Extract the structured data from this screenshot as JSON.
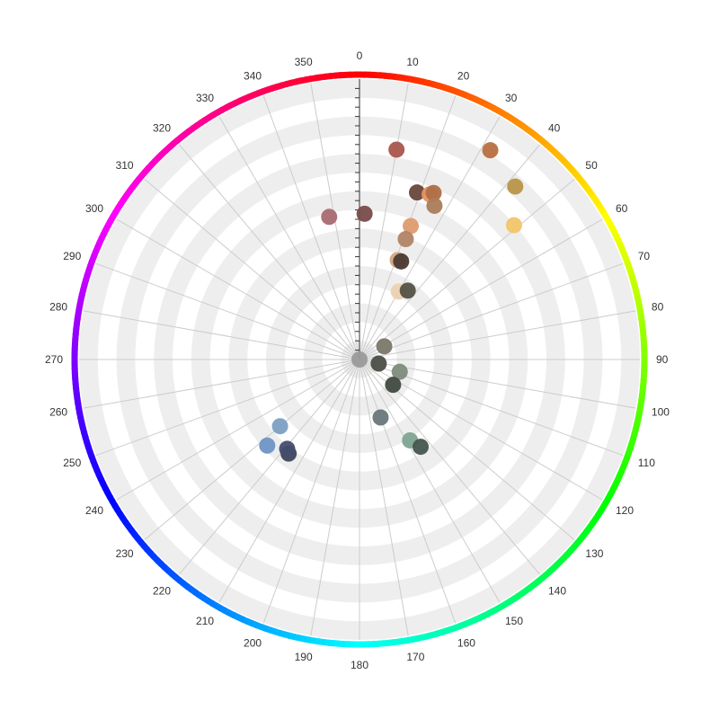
{
  "chart_data": {
    "type": "scatter",
    "coordinate_system": "polar",
    "angle_axis": {
      "min": 0,
      "max": 360,
      "tick_step": 10,
      "start": "top",
      "direction": "clockwise",
      "tick_labels": [
        "0",
        "10",
        "20",
        "30",
        "40",
        "50",
        "60",
        "70",
        "80",
        "90",
        "100",
        "110",
        "120",
        "130",
        "140",
        "150",
        "160",
        "170",
        "180",
        "190",
        "200",
        "210",
        "220",
        "230",
        "240",
        "250",
        "260",
        "270",
        "280",
        "290",
        "300",
        "310",
        "320",
        "330",
        "340",
        "350"
      ],
      "axis_line": "hue color wheel"
    },
    "radius_axis": {
      "min": 0,
      "max": 1,
      "split_bands": 15,
      "band_colors": [
        "#eeeeee",
        "#ffffff"
      ],
      "labels_shown": false
    },
    "grid": true,
    "legend": "none",
    "points": [
      {
        "angle": 10,
        "r": 0.76,
        "color": "#a9554c"
      },
      {
        "angle": 32,
        "r": 0.88,
        "color": "#b7703f"
      },
      {
        "angle": 42,
        "r": 0.83,
        "color": "#b89448"
      },
      {
        "angle": 49,
        "r": 0.73,
        "color": "#f1c56b"
      },
      {
        "angle": 2,
        "r": 0.52,
        "color": "#7a4b4b"
      },
      {
        "angle": 348,
        "r": 0.52,
        "color": "#a86a71"
      },
      {
        "angle": 19,
        "r": 0.63,
        "color": "#68463c"
      },
      {
        "angle": 23,
        "r": 0.64,
        "color": "#e6935e"
      },
      {
        "angle": 24,
        "r": 0.65,
        "color": "#af6e48"
      },
      {
        "angle": 26,
        "r": 0.61,
        "color": "#ab7b59"
      },
      {
        "angle": 21,
        "r": 0.51,
        "color": "#de9b6f"
      },
      {
        "angle": 21,
        "r": 0.46,
        "color": "#b08366"
      },
      {
        "angle": 21,
        "r": 0.38,
        "color": "#d4a481"
      },
      {
        "angle": 23,
        "r": 0.38,
        "color": "#4a3a33"
      },
      {
        "angle": 30,
        "r": 0.28,
        "color": "#ecd0b0"
      },
      {
        "angle": 35,
        "r": 0.3,
        "color": "#535144"
      },
      {
        "angle": 62,
        "r": 0.1,
        "color": "#7a786a"
      },
      {
        "angle": 107,
        "r": 0.15,
        "color": "#7c8c7a"
      },
      {
        "angle": 102,
        "r": 0.07,
        "color": "#4b4d47"
      },
      {
        "angle": 127,
        "r": 0.15,
        "color": "#3f4a40"
      },
      {
        "angle": 160,
        "r": 0.22,
        "color": "#68777a"
      },
      {
        "angle": 148,
        "r": 0.34,
        "color": "#7fa394"
      },
      {
        "angle": 145,
        "r": 0.38,
        "color": "#43564d"
      },
      {
        "angle": 217,
        "r": 0.42,
        "color": "#3e4558"
      },
      {
        "angle": 219,
        "r": 0.41,
        "color": "#454c6f"
      },
      {
        "angle": 230,
        "r": 0.37,
        "color": "#7ba0c2"
      },
      {
        "angle": 227,
        "r": 0.45,
        "color": "#6e93c5"
      },
      {
        "angle": 0,
        "r": 0.0,
        "color": "#9a9a9a"
      }
    ]
  }
}
